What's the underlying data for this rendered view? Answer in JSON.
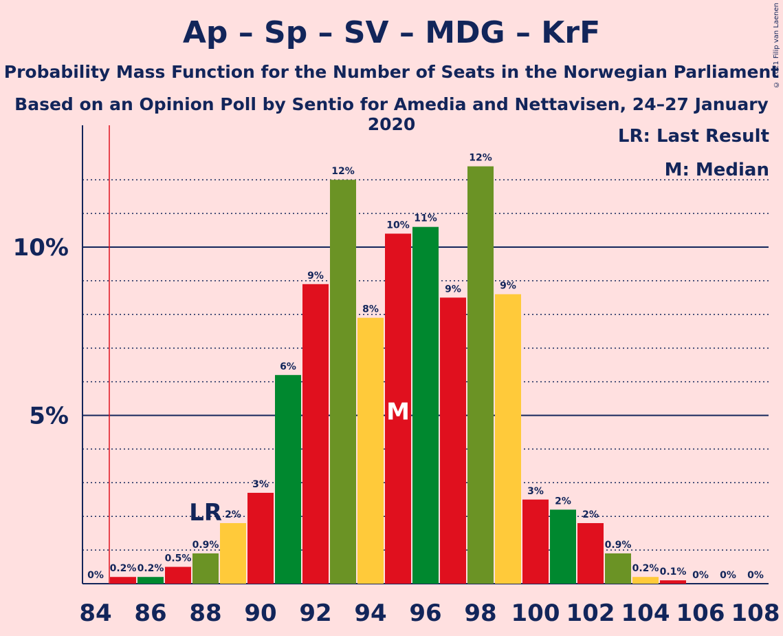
{
  "title": "Ap – Sp – SV – MDG – KrF",
  "subtitle1": "Probability Mass Function for the Number of Seats in the Norwegian Parliament",
  "subtitle2": "Based on an Opinion Poll by Sentio for Amedia and Nettavisen, 24–27 January 2020",
  "copyright": "© 2021 Filip van Laenen",
  "legend": {
    "lr": "LR: Last Result",
    "m": "M: Median"
  },
  "markers": {
    "lr": "LR",
    "m": "M"
  },
  "colors": {
    "red": "#E0101E",
    "green": "#00882F",
    "olive": "#6B9325",
    "yellow": "#FFCA3A",
    "text": "#12255A",
    "background": "#FFE0E0",
    "last_result_line": "#E0101E"
  },
  "chart_data": {
    "type": "bar",
    "x": [
      84,
      85,
      86,
      87,
      88,
      89,
      90,
      91,
      92,
      93,
      94,
      95,
      96,
      97,
      98,
      99,
      100,
      101,
      102,
      103,
      104,
      105,
      106,
      107,
      108
    ],
    "values": [
      0,
      0.2,
      0.2,
      0.5,
      0.9,
      1.8,
      2.7,
      6.2,
      8.9,
      12.0,
      7.9,
      10.4,
      10.6,
      8.5,
      12.4,
      8.6,
      2.5,
      2.2,
      1.8,
      0.9,
      0.2,
      0.1,
      0,
      0,
      0
    ],
    "labels": [
      "0%",
      "0.2%",
      "0.2%",
      "0.5%",
      "0.9%",
      "2%",
      "3%",
      "6%",
      "9%",
      "12%",
      "8%",
      "10%",
      "11%",
      "9%",
      "12%",
      "9%",
      "3%",
      "2%",
      "2%",
      "0.9%",
      "0.2%",
      "0.1%",
      "0%",
      "0%",
      "0%"
    ],
    "bar_colors": [
      "red",
      "red",
      "green",
      "red",
      "olive",
      "yellow",
      "red",
      "green",
      "red",
      "olive",
      "yellow",
      "red",
      "green",
      "red",
      "olive",
      "yellow",
      "red",
      "green",
      "red",
      "olive",
      "yellow",
      "red",
      "green",
      "red",
      "olive"
    ],
    "x_ticks": [
      "84",
      "86",
      "88",
      "90",
      "92",
      "94",
      "96",
      "98",
      "100",
      "102",
      "104",
      "106",
      "108"
    ],
    "y_ticks": [
      "5%",
      "10%"
    ],
    "y_tick_values": [
      5,
      10
    ],
    "ylim": [
      0,
      13.5
    ],
    "last_result": 85,
    "lr_label_at": 88,
    "median": 95,
    "grid": "dotted every 1%, solid at 5% and 10%"
  }
}
